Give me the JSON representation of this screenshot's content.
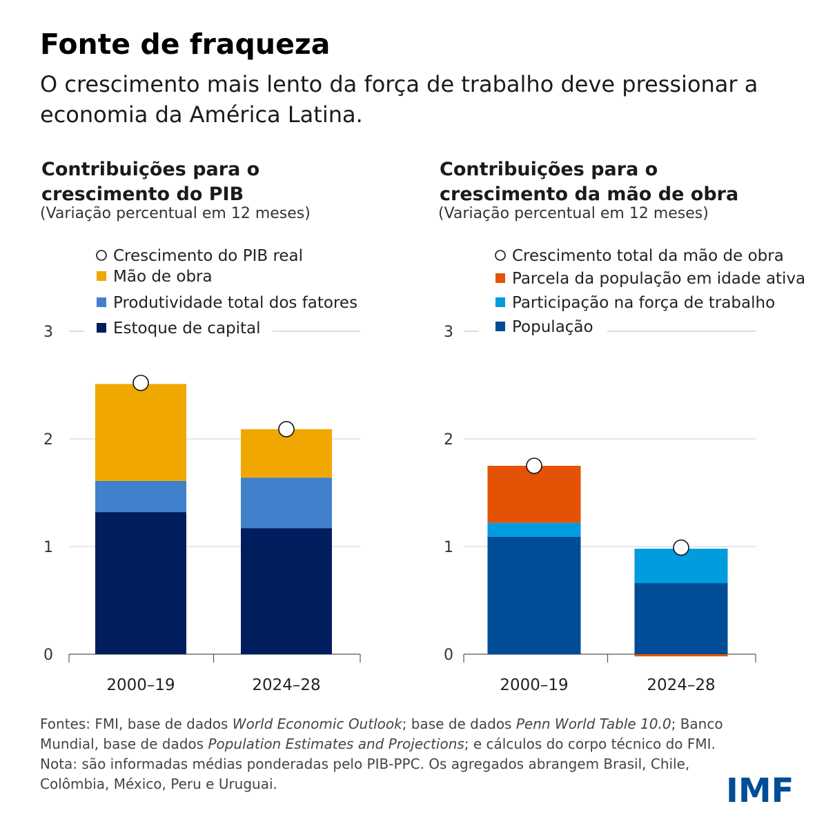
{
  "header": {
    "title": "Fonte de fraqueza",
    "subtitle": "O crescimento mais lento da força de trabalho deve pressionar a economia da América Latina."
  },
  "chart_data": [
    {
      "type": "bar",
      "stacked": true,
      "title": "Contribuições para o crescimento do PIB",
      "title_lines": [
        "Contribuições para o",
        "crescimento do PIB"
      ],
      "subtitle": "(Variação percentual em 12 meses)",
      "categories": [
        "2000–19",
        "2024–28"
      ],
      "y_ticks": [
        "0",
        "1",
        "2",
        "3"
      ],
      "ylim": [
        0,
        3
      ],
      "grid": true,
      "legend_position": "top",
      "series": [
        {
          "name": "Estoque de capital",
          "values": [
            1.32,
            1.17
          ],
          "color": "#001D5E"
        },
        {
          "name": "Produtividade total dos fatores",
          "values": [
            0.29,
            0.47
          ],
          "color": "#4180CB"
        },
        {
          "name": "Mão de obra",
          "values": [
            0.9,
            0.45
          ],
          "color": "#F0A800"
        }
      ],
      "markers": {
        "name": "Crescimento do PIB real",
        "values": [
          2.52,
          2.09
        ]
      },
      "legend_order": [
        "Crescimento do PIB real",
        "Mão de obra",
        "Produtividade total dos fatores",
        "Estoque de capital"
      ]
    },
    {
      "type": "bar",
      "stacked": true,
      "title": "Contribuições para o crescimento da mão de obra",
      "title_lines": [
        "Contribuições para o",
        "crescimento da mão de obra"
      ],
      "subtitle": "(Variação percentual em 12 meses)",
      "categories": [
        "2000–19",
        "2024–28"
      ],
      "y_ticks": [
        "0",
        "1",
        "2",
        "3"
      ],
      "ylim": [
        0,
        3
      ],
      "grid": true,
      "legend_position": "top",
      "series": [
        {
          "name": "População",
          "values": [
            1.09,
            0.66
          ],
          "color": "#004C97"
        },
        {
          "name": "Participação na força de trabalho",
          "values": [
            0.13,
            0.32
          ],
          "color": "#009CDE"
        },
        {
          "name": "Parcela da população em idade ativa",
          "values": [
            0.53,
            -0.02
          ],
          "color": "#E35205"
        }
      ],
      "markers": {
        "name": "Crescimento total da mão de obra",
        "values": [
          1.75,
          0.99
        ]
      },
      "legend_order": [
        "Crescimento total da mão de obra",
        "Parcela da população em idade ativa",
        "Participação na força de trabalho",
        "População"
      ]
    }
  ],
  "notes": {
    "sources": [
      {
        "text": "Fontes: FMI, base de dados ",
        "italic": false
      },
      {
        "text": "World Economic Outlook",
        "italic": true
      },
      {
        "text": "; base de dados ",
        "italic": false
      },
      {
        "text": "Penn World Table 10.0",
        "italic": true
      },
      {
        "text": "; Banco Mundial, base de dados ",
        "italic": false
      },
      {
        "text": "Population Estimates and Projections",
        "italic": true
      },
      {
        "text": "; e cálculos do corpo técnico do FMI.",
        "italic": false
      }
    ],
    "note": "Nota: são informadas médias ponderadas pelo PIB-PPC. Os agregados abrangem Brasil, Chile, Colômbia, México, Peru e Uruguai."
  },
  "logo": {
    "text": "IMF",
    "color": "#004C97"
  }
}
